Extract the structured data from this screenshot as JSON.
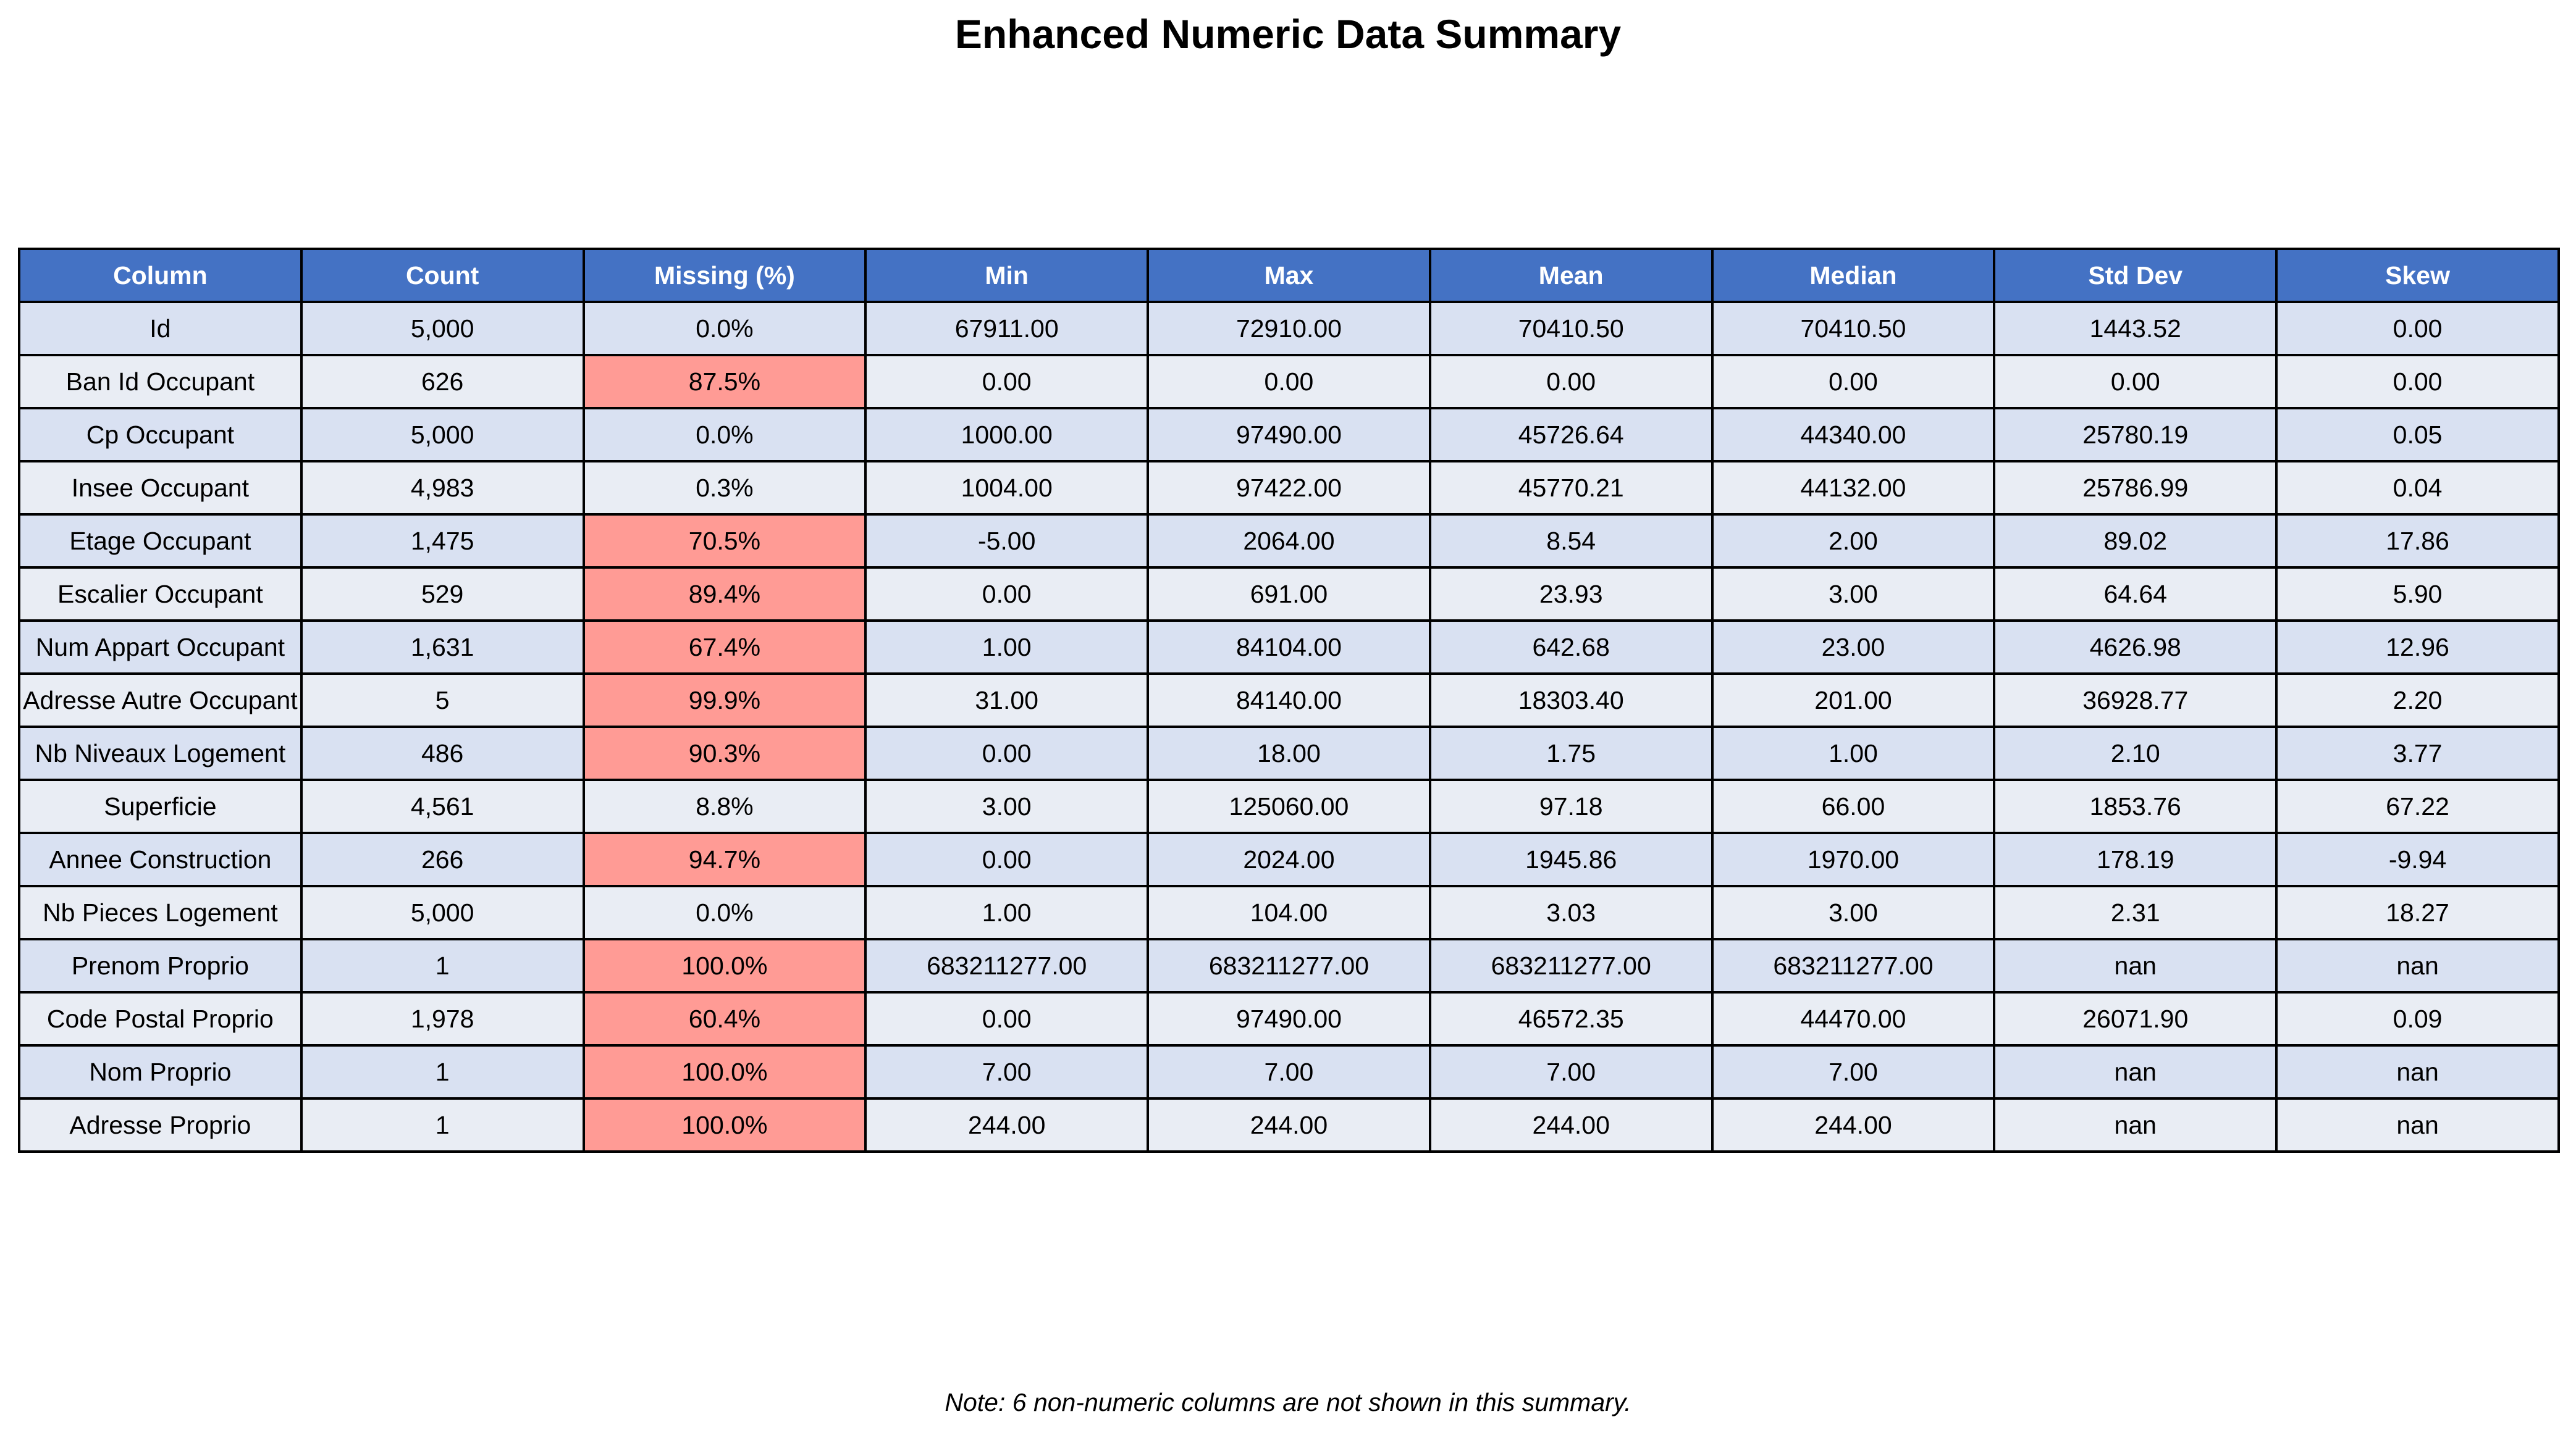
{
  "title": "Enhanced Numeric Data Summary",
  "note": "Note: 6 non-numeric columns are not shown in this summary.",
  "colors": {
    "header_bg": "#4472C4",
    "header_text": "#FFFFFF",
    "row_even_bg": "#D9E1F2",
    "row_odd_bg": "#E9EDF4",
    "highlight_bg": "#FF9B95",
    "border": "#000000"
  },
  "chart_data": {
    "type": "table",
    "highlight_column": "Missing (%)",
    "columns": [
      "Column",
      "Count",
      "Missing (%)",
      "Min",
      "Max",
      "Mean",
      "Median",
      "Std Dev",
      "Skew"
    ],
    "rows": [
      {
        "cells": [
          "Id",
          "5,000",
          "0.0%",
          "67911.00",
          "72910.00",
          "70410.50",
          "70410.50",
          "1443.52",
          "0.00"
        ],
        "missing_highlight": false
      },
      {
        "cells": [
          "Ban Id Occupant",
          "626",
          "87.5%",
          "0.00",
          "0.00",
          "0.00",
          "0.00",
          "0.00",
          "0.00"
        ],
        "missing_highlight": true
      },
      {
        "cells": [
          "Cp Occupant",
          "5,000",
          "0.0%",
          "1000.00",
          "97490.00",
          "45726.64",
          "44340.00",
          "25780.19",
          "0.05"
        ],
        "missing_highlight": false
      },
      {
        "cells": [
          "Insee Occupant",
          "4,983",
          "0.3%",
          "1004.00",
          "97422.00",
          "45770.21",
          "44132.00",
          "25786.99",
          "0.04"
        ],
        "missing_highlight": false
      },
      {
        "cells": [
          "Etage Occupant",
          "1,475",
          "70.5%",
          "-5.00",
          "2064.00",
          "8.54",
          "2.00",
          "89.02",
          "17.86"
        ],
        "missing_highlight": true
      },
      {
        "cells": [
          "Escalier Occupant",
          "529",
          "89.4%",
          "0.00",
          "691.00",
          "23.93",
          "3.00",
          "64.64",
          "5.90"
        ],
        "missing_highlight": true
      },
      {
        "cells": [
          "Num Appart Occupant",
          "1,631",
          "67.4%",
          "1.00",
          "84104.00",
          "642.68",
          "23.00",
          "4626.98",
          "12.96"
        ],
        "missing_highlight": true
      },
      {
        "cells": [
          "Adresse Autre Occupant",
          "5",
          "99.9%",
          "31.00",
          "84140.00",
          "18303.40",
          "201.00",
          "36928.77",
          "2.20"
        ],
        "missing_highlight": true
      },
      {
        "cells": [
          "Nb Niveaux Logement",
          "486",
          "90.3%",
          "0.00",
          "18.00",
          "1.75",
          "1.00",
          "2.10",
          "3.77"
        ],
        "missing_highlight": true
      },
      {
        "cells": [
          "Superficie",
          "4,561",
          "8.8%",
          "3.00",
          "125060.00",
          "97.18",
          "66.00",
          "1853.76",
          "67.22"
        ],
        "missing_highlight": false
      },
      {
        "cells": [
          "Annee Construction",
          "266",
          "94.7%",
          "0.00",
          "2024.00",
          "1945.86",
          "1970.00",
          "178.19",
          "-9.94"
        ],
        "missing_highlight": true
      },
      {
        "cells": [
          "Nb Pieces Logement",
          "5,000",
          "0.0%",
          "1.00",
          "104.00",
          "3.03",
          "3.00",
          "2.31",
          "18.27"
        ],
        "missing_highlight": false
      },
      {
        "cells": [
          "Prenom Proprio",
          "1",
          "100.0%",
          "683211277.00",
          "683211277.00",
          "683211277.00",
          "683211277.00",
          "nan",
          "nan"
        ],
        "missing_highlight": true
      },
      {
        "cells": [
          "Code Postal Proprio",
          "1,978",
          "60.4%",
          "0.00",
          "97490.00",
          "46572.35",
          "44470.00",
          "26071.90",
          "0.09"
        ],
        "missing_highlight": true
      },
      {
        "cells": [
          "Nom Proprio",
          "1",
          "100.0%",
          "7.00",
          "7.00",
          "7.00",
          "7.00",
          "nan",
          "nan"
        ],
        "missing_highlight": true
      },
      {
        "cells": [
          "Adresse Proprio",
          "1",
          "100.0%",
          "244.00",
          "244.00",
          "244.00",
          "244.00",
          "nan",
          "nan"
        ],
        "missing_highlight": true
      }
    ]
  }
}
